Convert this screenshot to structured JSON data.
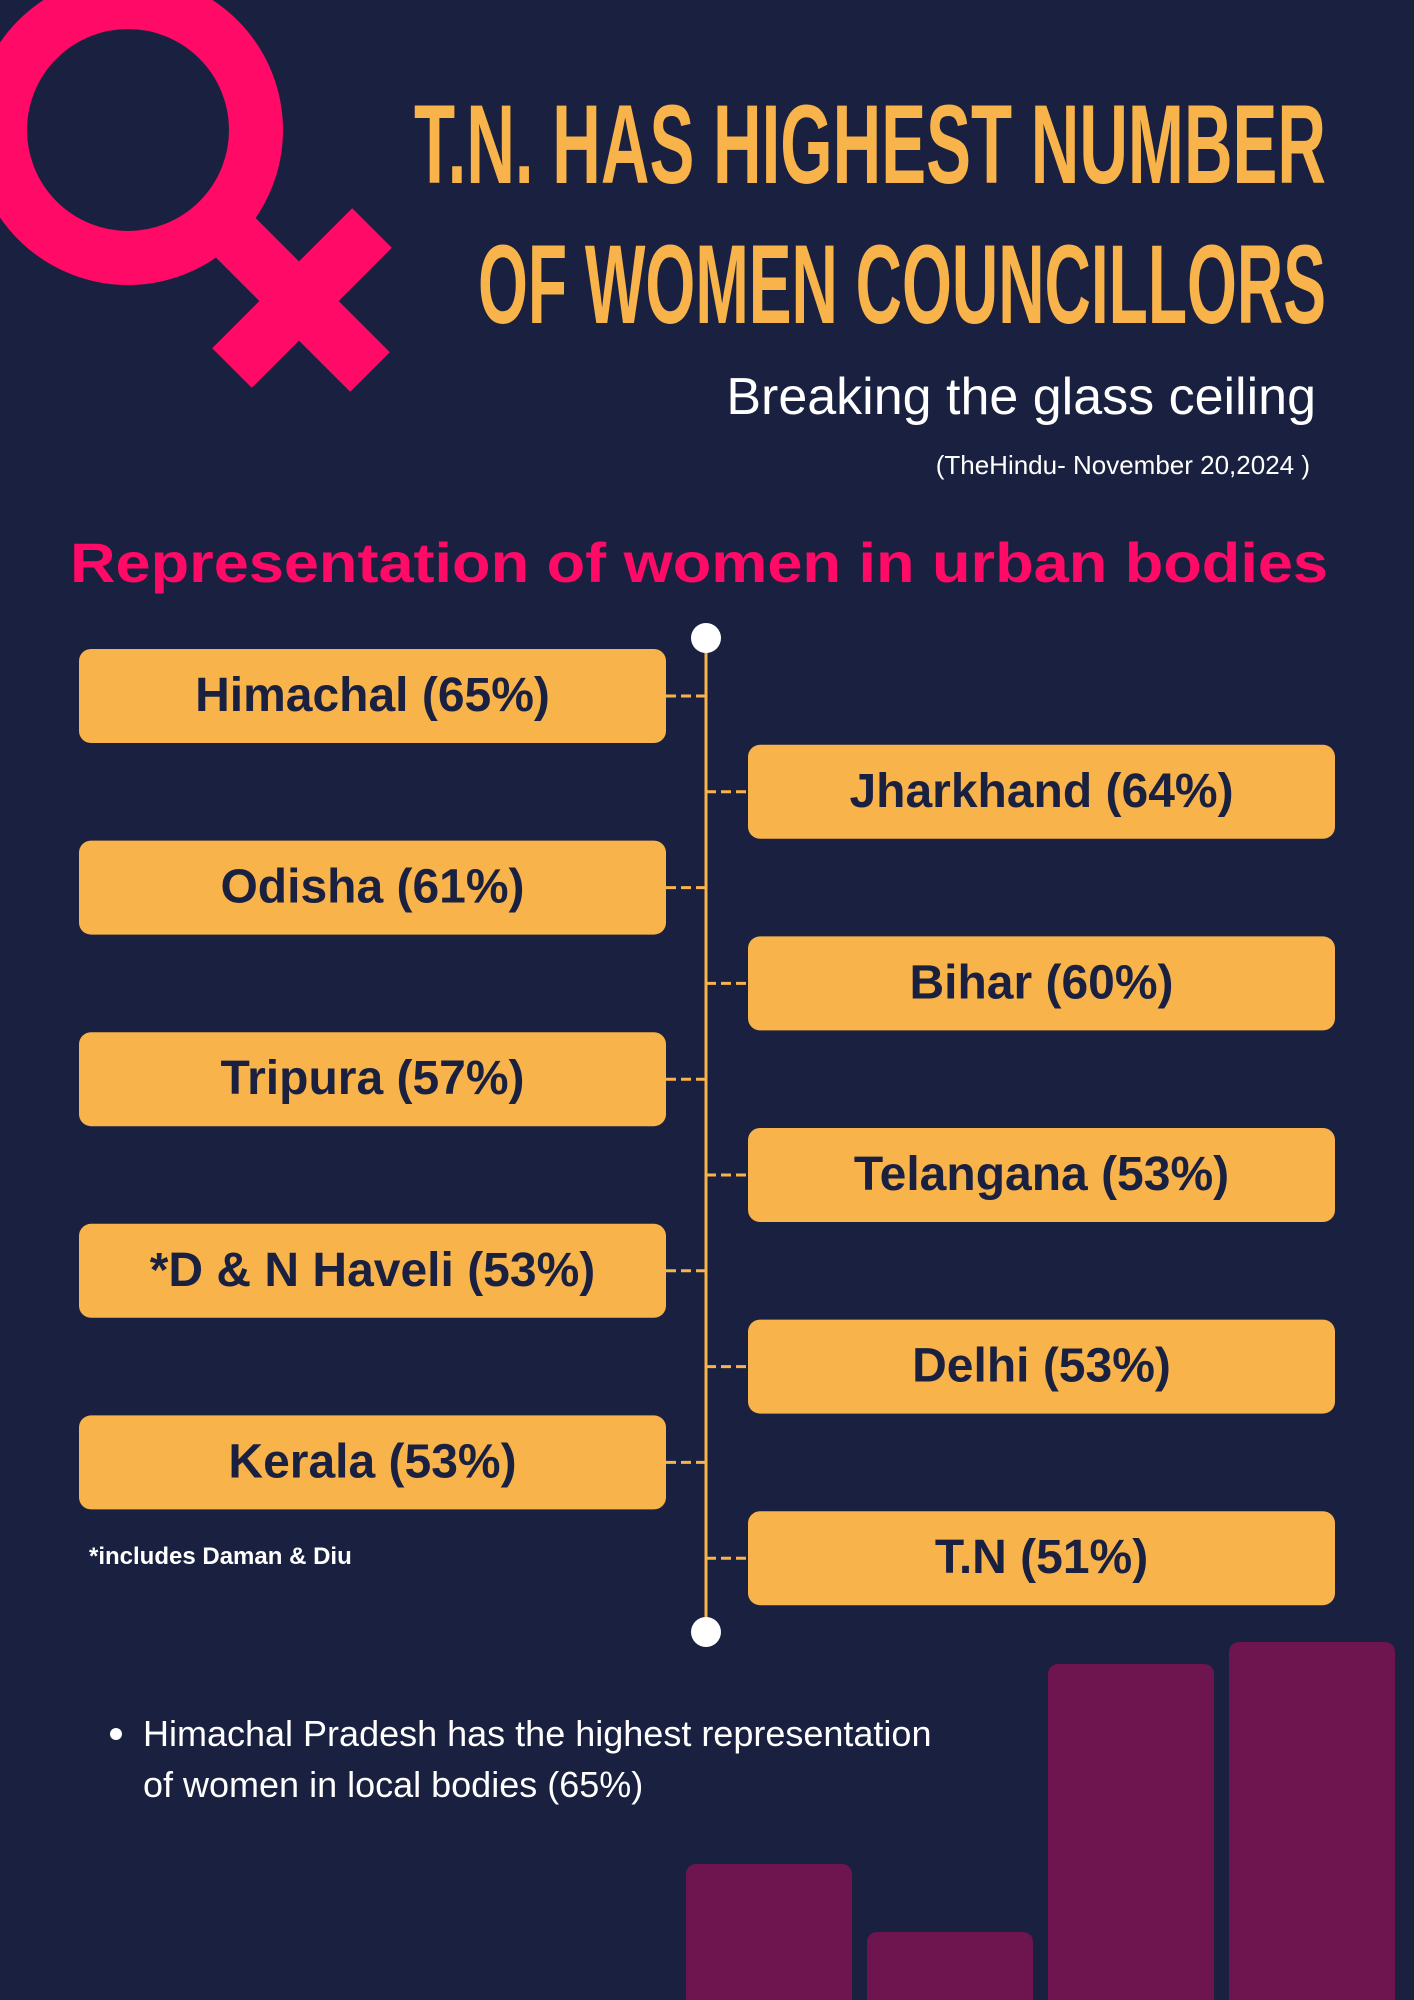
{
  "header": {
    "title_lines": [
      "T.N. HAS HIGHEST NUMBER",
      "OF WOMEN COUNCILLORS"
    ],
    "subtitle": "Breaking the glass ceiling",
    "source": "(TheHindu- November 20,2024 )"
  },
  "section": {
    "heading": "Representation of women in urban bodies",
    "items": [
      "Himachal (65%)",
      "Jharkhand (64%)",
      "Odisha (61%)",
      "Bihar (60%)",
      "Tripura (57%)",
      "Telangana (53%)",
      "*D & N Haveli (53%)",
      "Delhi (53%)",
      "Kerala (53%)",
      "T.N  (51%)"
    ],
    "footnote": "*includes Daman &  Diu"
  },
  "bullet": {
    "lines": [
      "Himachal Pradesh has the highest representation",
      "of women in local bodies (65%)"
    ]
  }
}
